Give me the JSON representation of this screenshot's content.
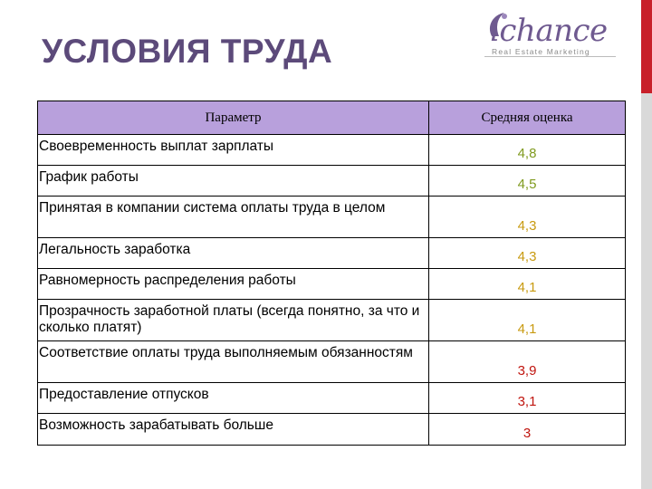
{
  "title": "УСЛОВИЯ ТРУДА",
  "logo": {
    "name": "ichance",
    "tagline": "Real Estate Marketing"
  },
  "table": {
    "headers": [
      "Параметр",
      "Средняя оценка"
    ],
    "rows": [
      {
        "name": "Своевременность выплат зарплаты",
        "value": "4,8",
        "color": "#7f9a1e"
      },
      {
        "name": "График работы",
        "value": "4,5",
        "color": "#7f9a1e"
      },
      {
        "name": "Принятая в компании система оплаты труда в целом",
        "value": "4,3",
        "color": "#c89a10"
      },
      {
        "name": "Легальность заработка",
        "value": "4,3",
        "color": "#c89a10"
      },
      {
        "name": "Равномерность распределения работы",
        "value": "4,1",
        "color": "#c89a10"
      },
      {
        "name": "Прозрачность заработной платы (всегда понятно, за что и сколько платят)",
        "value": "4,1",
        "color": "#c89a10"
      },
      {
        "name": "Соответствие оплаты труда выполняемым обязанностям",
        "value": "3,9",
        "color": "#c0150f"
      },
      {
        "name": "Предоставление отпусков",
        "value": "3,1",
        "color": "#c0150f"
      },
      {
        "name": "Возможность зарабатывать больше",
        "value": "3",
        "color": "#c0150f"
      }
    ]
  }
}
